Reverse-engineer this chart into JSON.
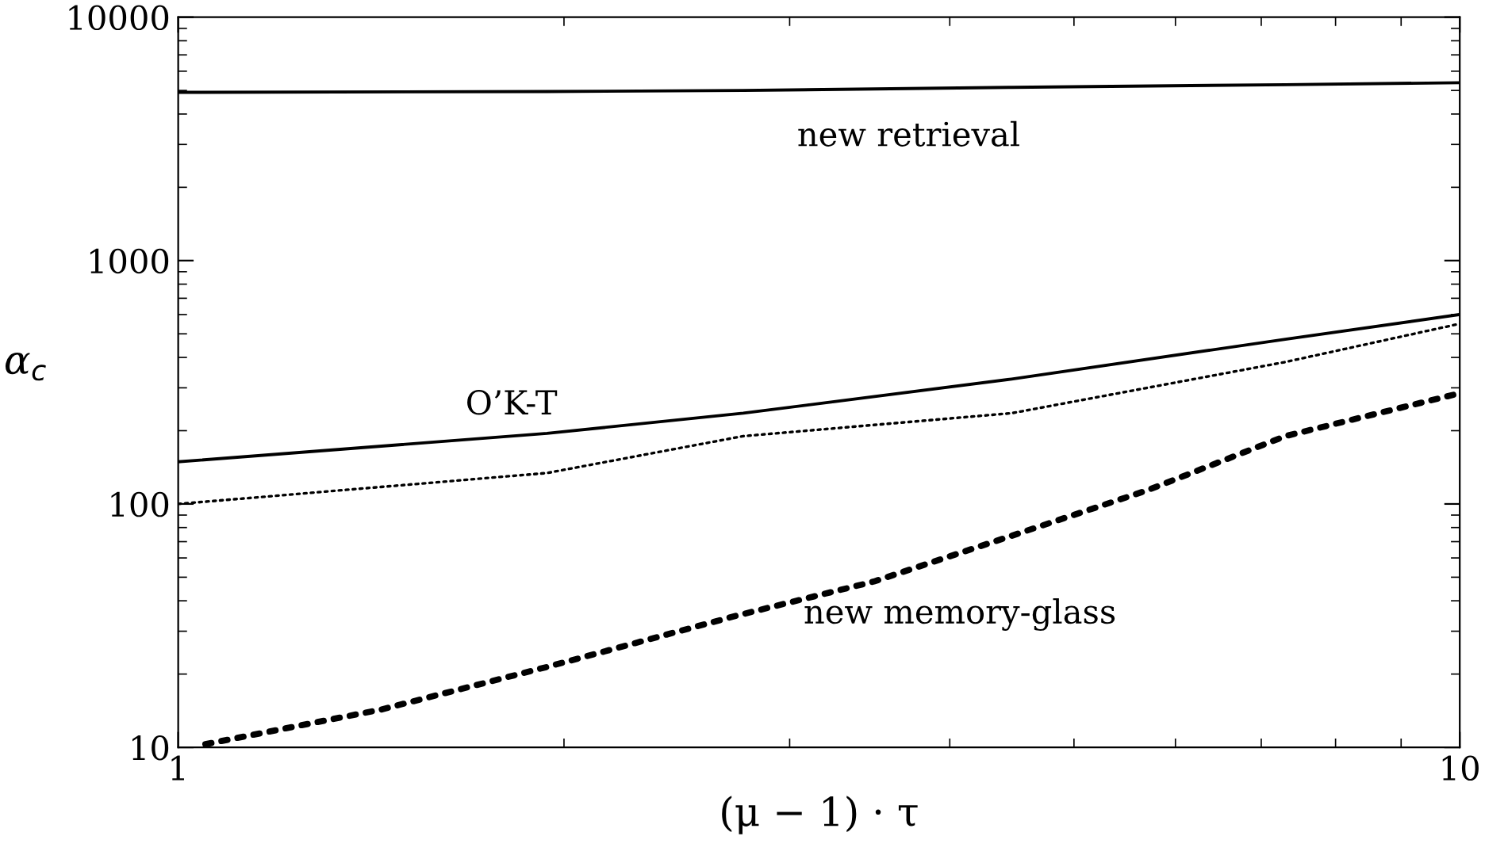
{
  "chart_data": {
    "type": "line",
    "xlabel": "(μ − 1) · τ",
    "ylabel": "α$_{c}$",
    "log": "xy",
    "xlim": [
      1,
      10
    ],
    "ylim": [
      10,
      10000
    ],
    "xticks": [
      1,
      10
    ],
    "yticks": [
      10,
      100,
      1000,
      10000
    ],
    "grid": false,
    "legend": false,
    "marker": "none",
    "series": [
      {
        "name": "new retrieval",
        "color": "#000000",
        "line_style": "solid",
        "x": [
          1,
          1.94,
          2.76,
          4.47,
          7.31,
          10
        ],
        "values": [
          4910,
          4950,
          5000,
          5150,
          5280,
          5380
        ]
      },
      {
        "name": "O’K-T",
        "color": "#000000",
        "line_style": "solid",
        "x": [
          1,
          1.94,
          2.76,
          4.47,
          7.31,
          10
        ],
        "values": [
          149,
          195,
          236,
          326,
          475,
          600
        ]
      },
      {
        "color": "#000000",
        "line_style": "dotted",
        "x": [
          1,
          1.94,
          2.76,
          4.47,
          7.31,
          10
        ],
        "values": [
          100,
          134,
          190,
          236,
          383,
          550
        ]
      },
      {
        "name": "new memory-glass",
        "color": "#000000",
        "line_style": "dotted",
        "x": [
          1.05,
          1.44,
          1.94,
          2.73,
          3.49,
          4.47,
          5.71,
          7.31,
          10
        ],
        "values": [
          10.3,
          14.3,
          21.4,
          34.8,
          48,
          74,
          114,
          190,
          285
        ]
      }
    ]
  }
}
